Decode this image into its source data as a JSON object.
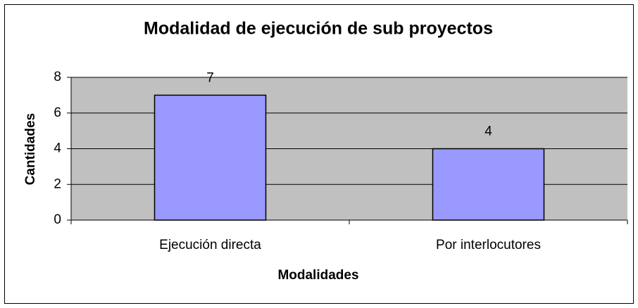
{
  "chart_data": {
    "type": "bar",
    "title": "Modalidad de ejecución de sub proyectos",
    "x_label": "Modalidades",
    "y_label": "Cantidades",
    "categories": [
      "Ejecución directa",
      "Por interlocutores"
    ],
    "values": [
      7,
      4
    ],
    "color": "#9999ff",
    "plot_background": "#c0c0c0",
    "ylim": [
      0,
      8
    ],
    "yticks": [
      0,
      2,
      4,
      6,
      8
    ],
    "grid": true,
    "data_labels": true
  }
}
